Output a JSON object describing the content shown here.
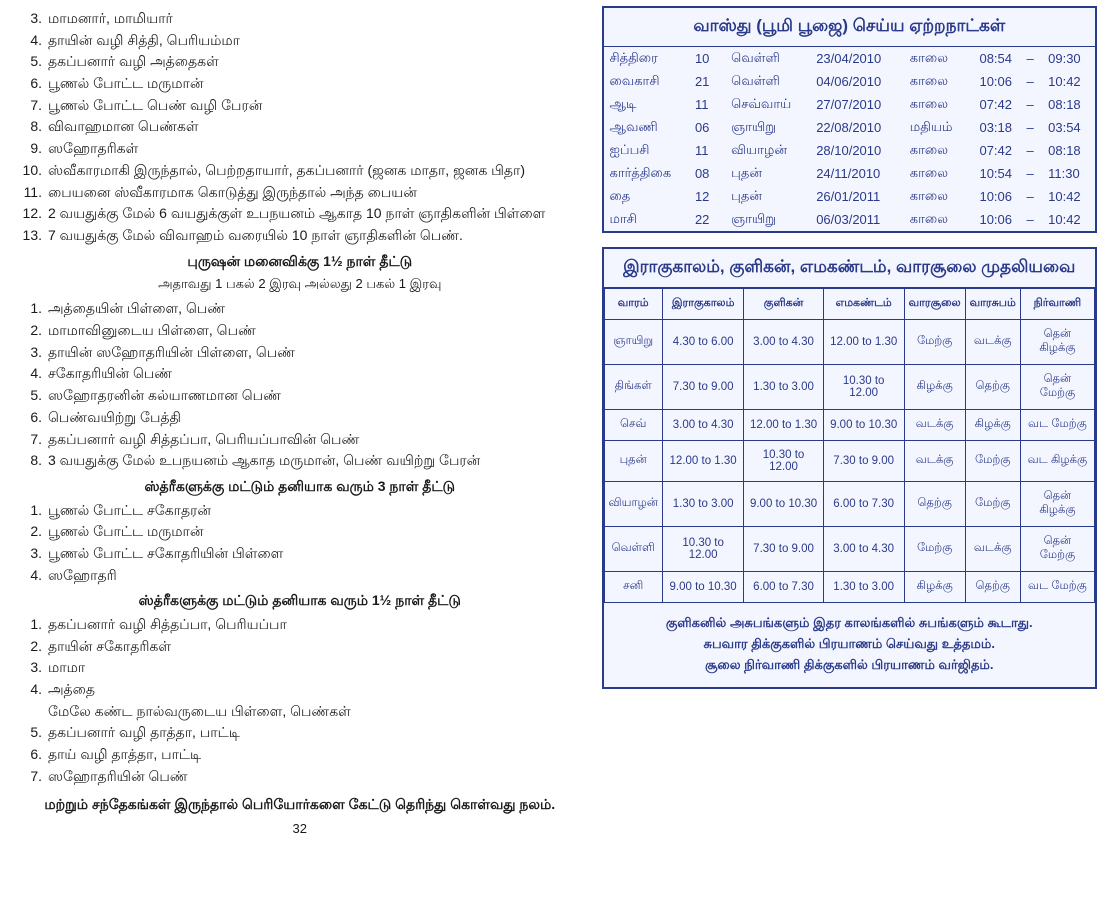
{
  "colors": {
    "box_border": "#2a3a8a",
    "box_bg": "#f4f6ff",
    "text_blue": "#2a3a8a",
    "text_black": "#1a1a1a",
    "page_bg": "#ffffff"
  },
  "left": {
    "items_a": [
      [
        "3.",
        "மாமனார், மாமியார்"
      ],
      [
        "4.",
        "தாயின் வழி சித்தி, பெரியம்மா"
      ],
      [
        "5.",
        "தகப்பனார் வழி அத்தைகள்"
      ],
      [
        "6.",
        "பூணல் போட்ட மருமான்"
      ],
      [
        "7.",
        "பூணல் போட்ட பெண் வழி பேரன்"
      ],
      [
        "8.",
        "விவாஹமான பெண்கள்"
      ],
      [
        "9.",
        "ஸஹோதரிகள்"
      ],
      [
        "10.",
        "ஸ்வீகாரமாகி இருந்தால், பெற்றதாயார், தகப்பனார் (ஜனக மாதா, ஜனக பிதா)"
      ],
      [
        "11.",
        "பையனை ஸ்வீகாரமாக கொடுத்து இருந்தால் அந்த பையன்"
      ],
      [
        "12.",
        "2 வயதுக்கு மேல் 6 வயதுக்குள் உபநயனம் ஆகாத 10 நாள் ஞாதிகளின் பிள்ளை"
      ],
      [
        "13.",
        "7 வயதுக்கு மேல் விவாஹம் வரையில் 10 நாள் ஞாதிகளின் பெண்."
      ]
    ],
    "heading_b": "புருஷன் மனைவிக்கு 1½ நாள் தீட்டு",
    "sub_b": "அதாவது 1 பகல் 2 இரவு அல்லது 2 பகல் 1 இரவு",
    "items_b": [
      [
        "1.",
        "அத்தையின் பிள்ளை, பெண்"
      ],
      [
        "2.",
        "மாமாவினுடைய பிள்ளை, பெண்"
      ],
      [
        "3.",
        "தாயின் ஸஹோதரியின் பிள்ளை, பெண்"
      ],
      [
        "4.",
        "சகோதரியின் பெண்"
      ],
      [
        "5.",
        "ஸஹோதரனின் கல்யாணமான பெண்"
      ],
      [
        "6.",
        "பெண்வயிற்று பேத்தி"
      ],
      [
        "7.",
        "தகப்பனார் வழி சித்தப்பா, பெரியப்பாவின் பெண்"
      ],
      [
        "8.",
        "3 வயதுக்கு மேல் உபநயனம் ஆகாத மருமான், பெண் வயிற்று பேரன்"
      ]
    ],
    "heading_c": "ஸ்த்ரீகளுக்கு மட்டும் தனியாக வரும் 3 நாள் தீட்டு",
    "items_c": [
      [
        "1.",
        "பூணல் போட்ட சகோதரன்"
      ],
      [
        "2.",
        "பூணல் போட்ட மருமான்"
      ],
      [
        "3.",
        "பூணல் போட்ட சகோதரியின் பிள்ளை"
      ],
      [
        "4.",
        "ஸஹோதரி"
      ]
    ],
    "heading_d": "ஸ்த்ரீகளுக்கு மட்டும் தனியாக வரும் 1½ நாள் தீட்டு",
    "items_d": [
      [
        "1.",
        "தகப்பனார் வழி சித்தப்பா, பெரியப்பா"
      ],
      [
        "2.",
        "தாயின் சகோதரிகள்"
      ],
      [
        "3.",
        "மாமா"
      ],
      [
        "4.",
        "அத்தை\nமேலே கண்ட நால்வருடைய பிள்ளை, பெண்கள்"
      ],
      [
        "5.",
        "தகப்பனார் வழி தாத்தா, பாட்டி"
      ],
      [
        "6.",
        "தாய் வழி தாத்தா, பாட்டி"
      ],
      [
        "7.",
        "ஸஹோதரியின் பெண்"
      ]
    ],
    "footer": "மற்றும் சந்தேகங்கள் இருந்தால் பெரியோர்களை கேட்டு தெரிந்து கொள்வது நலம்.",
    "pagenum": "32"
  },
  "vastu": {
    "title": "வாஸ்து (பூமி பூஜை) செய்ய ஏற்றநாட்கள்",
    "rows": [
      [
        "சித்திரை",
        "10",
        "வெள்ளி",
        "23/04/2010",
        "காலை",
        "08:54",
        "–",
        "09:30"
      ],
      [
        "வைகாசி",
        "21",
        "வெள்ளி",
        "04/06/2010",
        "காலை",
        "10:06",
        "–",
        "10:42"
      ],
      [
        "ஆடி",
        "11",
        "செவ்வாய்",
        "27/07/2010",
        "காலை",
        "07:42",
        "–",
        "08:18"
      ],
      [
        "ஆவணி",
        "06",
        "ஞாயிறு",
        "22/08/2010",
        "மதியம்",
        "03:18",
        "–",
        "03:54"
      ],
      [
        "ஐப்பசி",
        "11",
        "வியாழன்",
        "28/10/2010",
        "காலை",
        "07:42",
        "–",
        "08:18"
      ],
      [
        "கார்த்திகை",
        "08",
        "புதன்",
        "24/11/2010",
        "காலை",
        "10:54",
        "–",
        "11:30"
      ],
      [
        "தை",
        "12",
        "புதன்",
        "26/01/2011",
        "காலை",
        "10:06",
        "–",
        "10:42"
      ],
      [
        "மாசி",
        "22",
        "ஞாயிறு",
        "06/03/2011",
        "காலை",
        "10:06",
        "–",
        "10:42"
      ]
    ]
  },
  "rahu": {
    "title": "இராகுகாலம், குளிகன், எமகண்டம், வாரசூலை முதலியவை",
    "headers": [
      "வாரம்",
      "இராகுகாலம்",
      "குளிகன்",
      "எமகண்டம்",
      "வாரசூலை",
      "வாரசுபம்",
      "நிர்வாணி"
    ],
    "rows": [
      [
        "ஞாயிறு",
        "4.30 to 6.00",
        "3.00 to 4.30",
        "12.00 to 1.30",
        "மேற்கு",
        "வடக்கு",
        "தென் கிழக்கு"
      ],
      [
        "திங்கள்",
        "7.30 to 9.00",
        "1.30 to 3.00",
        "10.30 to 12.00",
        "கிழக்கு",
        "தெற்கு",
        "தென் மேற்கு"
      ],
      [
        "செவ்",
        "3.00 to 4.30",
        "12.00 to 1.30",
        "9.00 to 10.30",
        "வடக்கு",
        "கிழக்கு",
        "வட மேற்கு"
      ],
      [
        "புதன்",
        "12.00 to 1.30",
        "10.30 to 12.00",
        "7.30 to 9.00",
        "வடக்கு",
        "மேற்கு",
        "வட கிழக்கு"
      ],
      [
        "வியாழன்",
        "1.30 to 3.00",
        "9.00 to 10.30",
        "6.00 to 7.30",
        "தெற்கு",
        "மேற்கு",
        "தென் கிழக்கு"
      ],
      [
        "வெள்ளி",
        "10.30 to 12.00",
        "7.30 to 9.00",
        "3.00 to 4.30",
        "மேற்கு",
        "வடக்கு",
        "தென் மேற்கு"
      ],
      [
        "சனி",
        "9.00 to 10.30",
        "6.00 to 7.30",
        "1.30 to 3.00",
        "கிழக்கு",
        "தெற்கு",
        "வட மேற்கு"
      ]
    ],
    "footer": "குளிகனில் அசுபங்களும் இதர காலங்களில் சுபங்களும் கூடாது.\nசுபவார திக்குகளில் பிரயாணம் செய்வது உத்தமம்.\nசூலை நிர்வாணி திக்குகளில் பிரயாணம் வர்ஜிதம்."
  }
}
